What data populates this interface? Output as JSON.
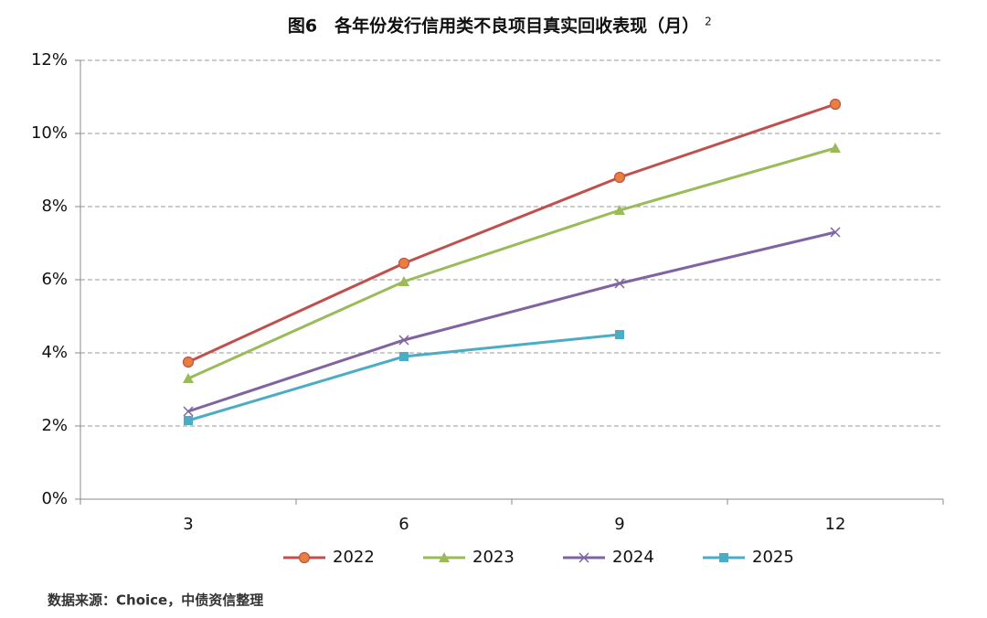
{
  "chart_data": {
    "type": "line",
    "title": "图6　各年份发行信用类不良项目真实回收表现（月）",
    "title_superscript": "2",
    "categories": [
      "3",
      "6",
      "9",
      "12"
    ],
    "series": [
      {
        "name": "2022",
        "color": "#c0504d",
        "marker": "circle",
        "values": [
          3.75,
          6.45,
          8.8,
          10.8
        ]
      },
      {
        "name": "2023",
        "color": "#9bbb59",
        "marker": "triangle",
        "values": [
          3.3,
          5.95,
          7.9,
          9.6
        ]
      },
      {
        "name": "2024",
        "color": "#8064a2",
        "marker": "x",
        "values": [
          2.4,
          4.35,
          5.9,
          7.3
        ]
      },
      {
        "name": "2025",
        "color": "#4bacc6",
        "marker": "square",
        "values": [
          2.15,
          3.9,
          4.5,
          null
        ]
      }
    ],
    "ylim": [
      0,
      12
    ],
    "yticks": [
      {
        "value": 0,
        "label": "0%"
      },
      {
        "value": 2,
        "label": "2%"
      },
      {
        "value": 4,
        "label": "4%"
      },
      {
        "value": 6,
        "label": "6%"
      },
      {
        "value": 8,
        "label": "8%"
      },
      {
        "value": 10,
        "label": "10%"
      },
      {
        "value": 12,
        "label": "12%"
      }
    ],
    "grid": true,
    "legend": "bottom",
    "source": "数据来源：Choice，中债资信整理"
  }
}
